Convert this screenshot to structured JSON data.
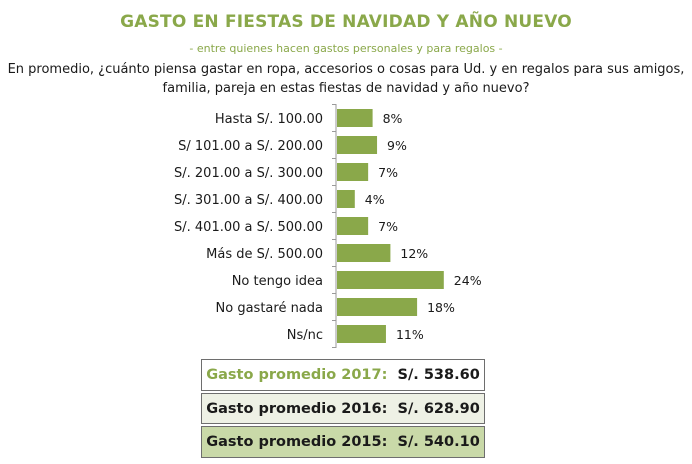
{
  "header": {
    "title": "GASTO EN FIESTAS DE NAVIDAD Y AÑO NUEVO",
    "subtitle": "- entre quienes hacen gastos personales y para regalos -",
    "question_line1": "En promedio, ¿cuánto piensa gastar en ropa, accesorios o cosas para Ud. y en regalos para sus amigos,",
    "question_line2": "familia, pareja en estas fiestas de navidad y año nuevo?"
  },
  "chart_data": {
    "type": "bar",
    "orientation": "horizontal",
    "categories": [
      "Hasta S/. 100.00",
      "S/ 101.00 a S/. 200.00",
      "S/. 201.00 a S/. 300.00",
      "S/. 301.00 a S/. 400.00",
      "S/. 401.00 a S/. 500.00",
      "Más de S/. 500.00",
      "No tengo idea",
      "No gastaré nada",
      "Ns/nc"
    ],
    "values": [
      8,
      9,
      7,
      4,
      7,
      12,
      24,
      18,
      11
    ],
    "value_labels": [
      "8%",
      "9%",
      "7%",
      "4%",
      "7%",
      "12%",
      "24%",
      "18%",
      "11%"
    ],
    "unit": "%",
    "bar_color": "#8aa84a",
    "grid": false,
    "legend": "none"
  },
  "summary": [
    {
      "label": "Gasto promedio 2017:",
      "value": "S/. 538.60"
    },
    {
      "label": "Gasto promedio 2016:",
      "value": "S/. 628.90"
    },
    {
      "label": "Gasto promedio 2015:",
      "value": "S/. 540.10"
    }
  ],
  "colors": {
    "accent": "#8aa84a",
    "box_2016_bg": "#eef1e5",
    "box_2015_bg": "#c9d9a8"
  }
}
